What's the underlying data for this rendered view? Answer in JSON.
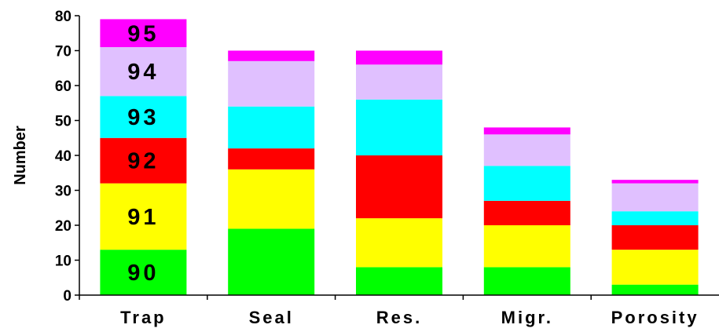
{
  "chart_data": {
    "type": "bar",
    "stacked": true,
    "title": "",
    "xlabel": "",
    "ylabel": "Number",
    "ylim": [
      0,
      80
    ],
    "yticks": [
      0,
      10,
      20,
      30,
      40,
      50,
      60,
      70,
      80
    ],
    "grid": false,
    "legend": "none",
    "categories": [
      "Trap",
      "Seal",
      "Res.",
      "Migr.",
      "Porosity"
    ],
    "series": [
      {
        "name": "90",
        "color": "#00ff00",
        "values": [
          13,
          19,
          8,
          8,
          3
        ]
      },
      {
        "name": "91",
        "color": "#ffff00",
        "values": [
          19,
          17,
          14,
          12,
          10
        ]
      },
      {
        "name": "92",
        "color": "#ff0000",
        "values": [
          13,
          6,
          18,
          7,
          7
        ]
      },
      {
        "name": "93",
        "color": "#00ffff",
        "values": [
          12,
          12,
          16,
          10,
          4
        ]
      },
      {
        "name": "94",
        "color": "#e0c0ff",
        "values": [
          14,
          13,
          10,
          9,
          8
        ]
      },
      {
        "name": "95",
        "color": "#ff00ff",
        "values": [
          8,
          3,
          4,
          2,
          1
        ]
      }
    ],
    "segment_labels_on_category": "Trap"
  }
}
